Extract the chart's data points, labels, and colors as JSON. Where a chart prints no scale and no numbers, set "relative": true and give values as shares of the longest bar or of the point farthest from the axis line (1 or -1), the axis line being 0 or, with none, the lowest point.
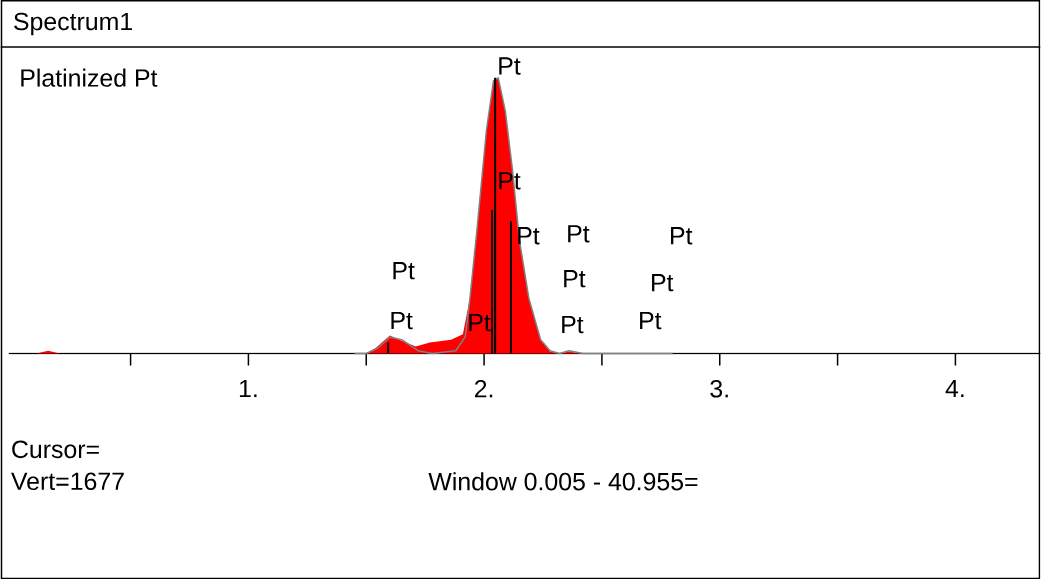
{
  "chart_data": {
    "type": "area",
    "relative": true,
    "title": "Spectrum1",
    "subtitle": "Platinized Pt",
    "xlim": [
      -0.017,
      4.36
    ],
    "xticks": [
      {
        "value": 0.5,
        "label": null
      },
      {
        "value": 1,
        "label": "1."
      },
      {
        "value": 1.5,
        "label": null
      },
      {
        "value": 2,
        "label": "2."
      },
      {
        "value": 2.5,
        "label": null
      },
      {
        "value": 3,
        "label": "3."
      },
      {
        "value": 3.5,
        "label": null
      },
      {
        "value": 4,
        "label": "4."
      }
    ],
    "series": [
      {
        "color": "#ff0000",
        "x": [
          0.1,
          0.15,
          0.2,
          1.45,
          1.5,
          1.54,
          1.6,
          1.64,
          1.71,
          1.77,
          1.86,
          1.91,
          1.94,
          1.97,
          2.01,
          2.04,
          2.06,
          2.09,
          2.12,
          2.15,
          2.19,
          2.24,
          2.28,
          2.32,
          2.36,
          2.41,
          2.7,
          3.2,
          3.7,
          4.3
        ],
        "values": [
          0,
          0.01,
          0,
          0,
          0,
          0.02,
          0.065,
          0.05,
          0.025,
          0.04,
          0.05,
          0.07,
          0.2,
          0.45,
          0.81,
          0.99,
          1.0,
          0.88,
          0.67,
          0.41,
          0.2,
          0.05,
          0.007,
          0,
          0.007,
          0,
          0,
          0,
          0,
          0
        ]
      },
      {
        "type": "line",
        "color": "#808080",
        "x": [
          1.45,
          1.5,
          1.55,
          1.6,
          1.65,
          1.72,
          1.78,
          1.88,
          1.92,
          1.94,
          1.97,
          2.01,
          2.04,
          2.06,
          2.09,
          2.12,
          2.15,
          2.19,
          2.24,
          2.28,
          2.32,
          2.36,
          2.42,
          2.6,
          2.8
        ],
        "values": [
          0,
          0,
          0.02,
          0.06,
          0.05,
          0.01,
          0,
          0.01,
          0.06,
          0.2,
          0.45,
          0.81,
          0.99,
          1.0,
          0.88,
          0.67,
          0.41,
          0.2,
          0.05,
          0.01,
          0,
          0.01,
          0,
          0,
          0
        ]
      },
      {
        "type": "bar",
        "color": "#000000",
        "x": [
          1.593,
          2.034,
          2.047,
          2.114
        ],
        "values": [
          0.04,
          0.52,
          1.0,
          0.48
        ]
      }
    ],
    "annotations": [
      "Pt",
      "Pt",
      "Pt",
      "Pt",
      "Pt",
      "Pt",
      "Pt",
      "Pt",
      "Pt",
      "Pt",
      "Pt",
      "Pt",
      "Cursor=",
      "Vert=1677",
      "Window 0.005 - 40.955="
    ]
  }
}
